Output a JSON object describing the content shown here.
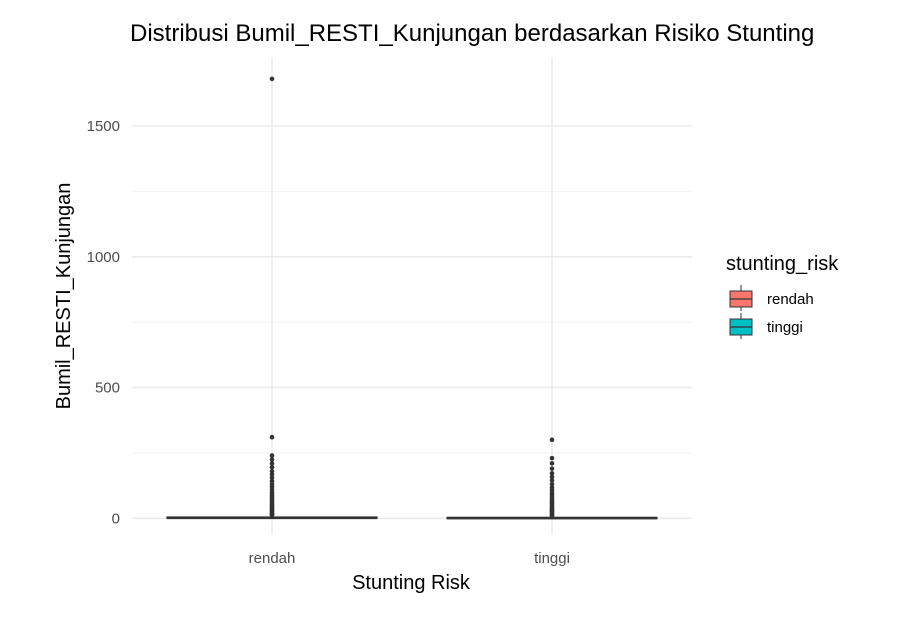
{
  "chart_data": {
    "type": "box",
    "title": "Distribusi Bumil_RESTI_Kunjungan berdasarkan Risiko Stunting",
    "xlabel": "Stunting Risk",
    "ylabel": "Bumil_RESTI_Kunjungan",
    "categories": [
      "rendah",
      "tinggi"
    ],
    "yticks": [
      0,
      500,
      1000,
      1500
    ],
    "ylim": [
      -60,
      1760
    ],
    "grid": true,
    "legend": {
      "title": "stunting_risk",
      "position": "right",
      "entries": [
        {
          "label": "rendah",
          "color": "#F8766D"
        },
        {
          "label": "tinggi",
          "color": "#00BFC4"
        }
      ]
    },
    "series": [
      {
        "category": "rendah",
        "color": "#F8766D",
        "q1": 0,
        "median": 2,
        "q3": 5,
        "whisker_low": 0,
        "whisker_high": 10,
        "outliers": [
          1680,
          310,
          240,
          225,
          210,
          195,
          180,
          168,
          155,
          142,
          130,
          120,
          110,
          100,
          92,
          85,
          78,
          72,
          66,
          60,
          55,
          50,
          45,
          40,
          36,
          32,
          28,
          24,
          20,
          17,
          14,
          12
        ]
      },
      {
        "category": "tinggi",
        "color": "#00BFC4",
        "q1": 0,
        "median": 1,
        "q3": 3,
        "whisker_low": 0,
        "whisker_high": 7,
        "outliers": [
          300,
          230,
          210,
          190,
          172,
          158,
          145,
          130,
          118,
          108,
          98,
          90,
          82,
          75,
          68,
          62,
          56,
          50,
          45,
          40,
          35,
          31,
          27,
          23,
          19,
          15,
          12,
          9
        ]
      }
    ]
  }
}
